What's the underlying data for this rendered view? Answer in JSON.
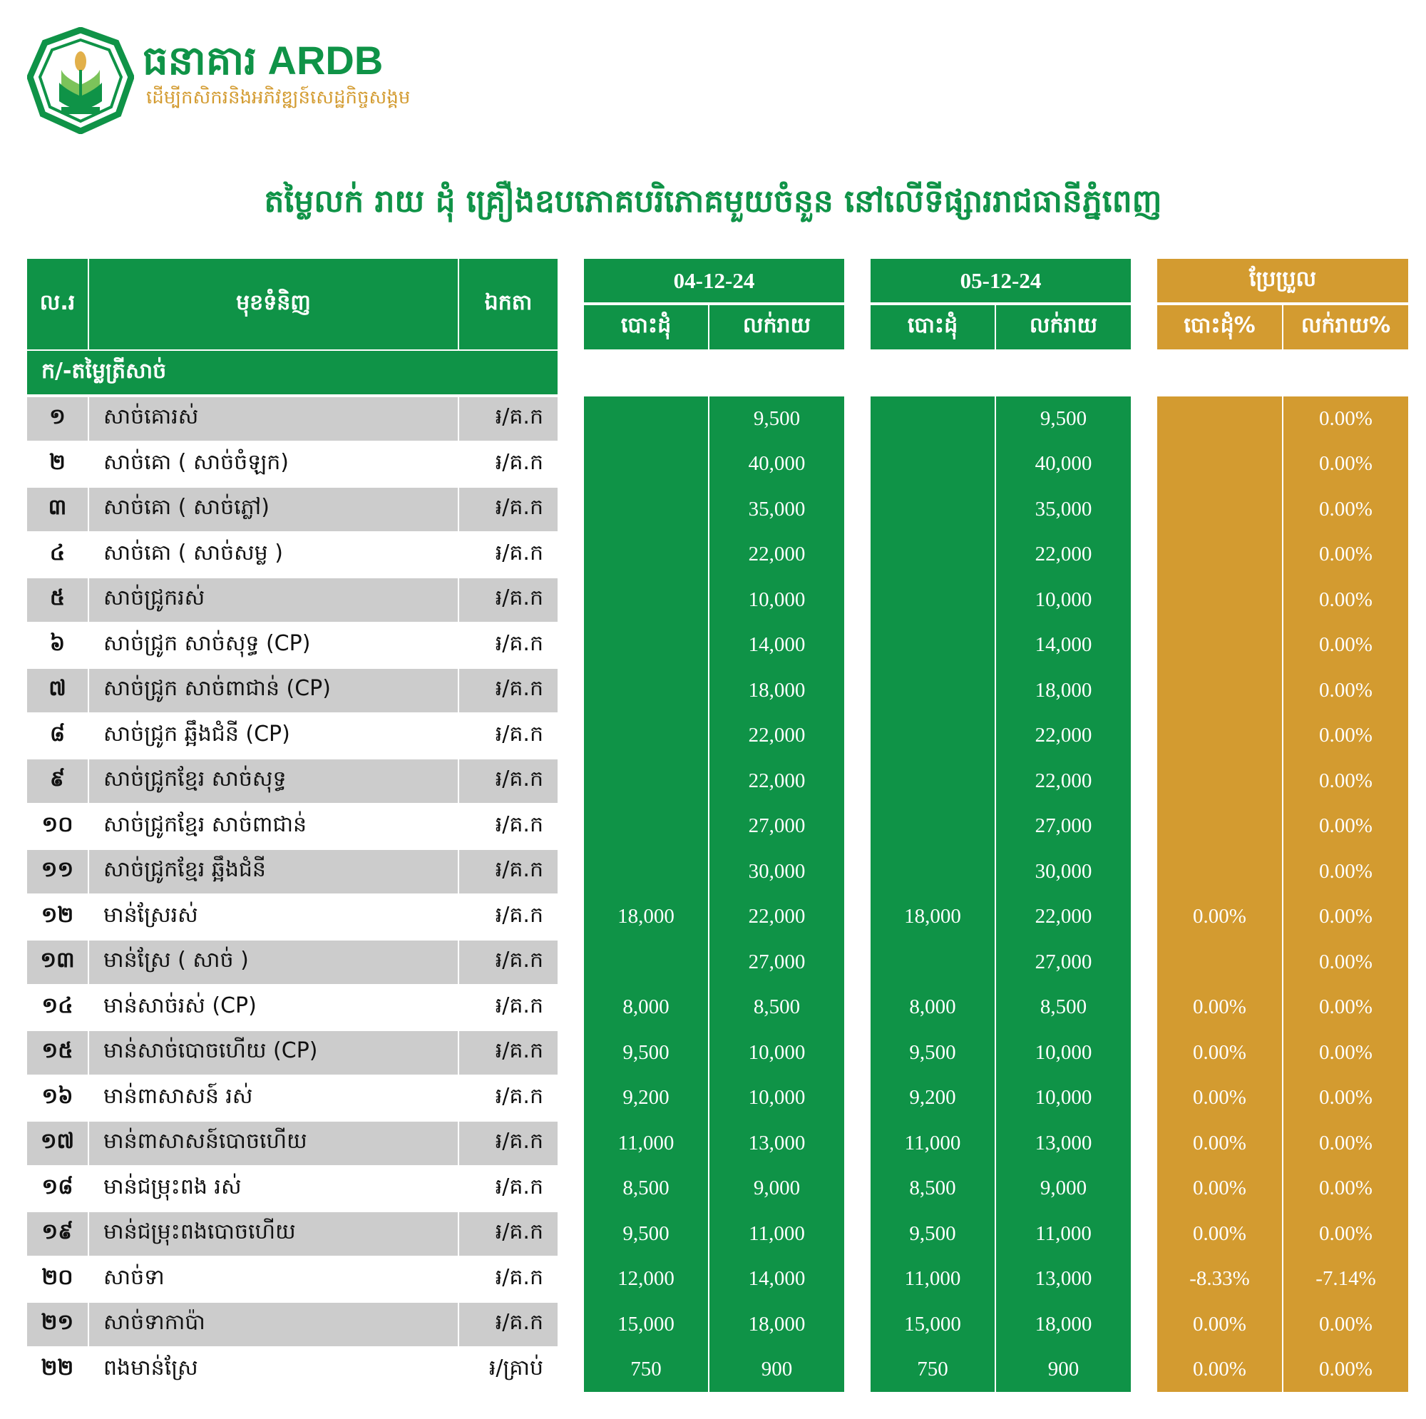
{
  "brand": {
    "name": "ធនាគារ ARDB",
    "tagline": "ដើម្បីកសិករនិងអភិវឌ្ឍន៍សេដ្ឋកិច្ចសង្គម"
  },
  "title": "តម្លៃលក់ រាយ ដុំ គ្រឿងឧបភោគបរិភោគមួយចំនួន នៅលើទីផ្សាររាជធានីភ្នំពេញ",
  "colors": {
    "green": "#0f9347",
    "gold": "#d39b30",
    "row_gray": "#cccccc"
  },
  "headers": {
    "no": "ល.រ",
    "item": "មុខទំនិញ",
    "unit": "ឯកតា",
    "date1": "04-12-24",
    "date2": "05-12-24",
    "change": "ប្រែប្រួល",
    "wholesale": "បោះដុំ",
    "retail": "លក់រាយ",
    "wholesale_pct": "បោះដុំ%",
    "retail_pct": "លក់រាយ%"
  },
  "section": "ក/-តម្លៃត្រីសាច់",
  "rows": [
    {
      "no": "១",
      "item": "សាច់គោរស់",
      "unit": "៛/គ.ក",
      "w1": "",
      "r1": "9,500",
      "w2": "",
      "r2": "9,500",
      "wp": "",
      "rp": "0.00%"
    },
    {
      "no": "២",
      "item": "សាច់គោ ( សាច់ចំឡក)",
      "unit": "៛/គ.ក",
      "w1": "",
      "r1": "40,000",
      "w2": "",
      "r2": "40,000",
      "wp": "",
      "rp": "0.00%"
    },
    {
      "no": "៣",
      "item": "សាច់គោ ( សាច់ភ្លៅ)",
      "unit": "៛/គ.ក",
      "w1": "",
      "r1": "35,000",
      "w2": "",
      "r2": "35,000",
      "wp": "",
      "rp": "0.00%"
    },
    {
      "no": "៤",
      "item": "សាច់គោ ( សាច់សម្ល )",
      "unit": "៛/គ.ក",
      "w1": "",
      "r1": "22,000",
      "w2": "",
      "r2": "22,000",
      "wp": "",
      "rp": "0.00%"
    },
    {
      "no": "៥",
      "item": "សាច់ជ្រូករស់",
      "unit": "៛/គ.ក",
      "w1": "",
      "r1": "10,000",
      "w2": "",
      "r2": "10,000",
      "wp": "",
      "rp": "0.00%"
    },
    {
      "no": "៦",
      "item": "សាច់ជ្រូក សាច់សុទ្ធ (CP)",
      "unit": "៛/គ.ក",
      "w1": "",
      "r1": "14,000",
      "w2": "",
      "r2": "14,000",
      "wp": "",
      "rp": "0.00%"
    },
    {
      "no": "៧",
      "item": "សាច់ជ្រូក សាច់ពាជាន់ (CP)",
      "unit": "៛/គ.ក",
      "w1": "",
      "r1": "18,000",
      "w2": "",
      "r2": "18,000",
      "wp": "",
      "rp": "0.00%"
    },
    {
      "no": "៨",
      "item": "សាច់ជ្រូក ឆ្អឹងជំនី (CP)",
      "unit": "៛/គ.ក",
      "w1": "",
      "r1": "22,000",
      "w2": "",
      "r2": "22,000",
      "wp": "",
      "rp": "0.00%"
    },
    {
      "no": "៩",
      "item": "សាច់ជ្រូកខ្មែរ សាច់សុទ្ធ",
      "unit": "៛/គ.ក",
      "w1": "",
      "r1": "22,000",
      "w2": "",
      "r2": "22,000",
      "wp": "",
      "rp": "0.00%"
    },
    {
      "no": "១០",
      "item": "សាច់ជ្រូកខ្មែរ សាច់ពាជាន់",
      "unit": "៛/គ.ក",
      "w1": "",
      "r1": "27,000",
      "w2": "",
      "r2": "27,000",
      "wp": "",
      "rp": "0.00%"
    },
    {
      "no": "១១",
      "item": "សាច់ជ្រូកខ្មែរ ឆ្អឹងជំនី",
      "unit": "៛/គ.ក",
      "w1": "",
      "r1": "30,000",
      "w2": "",
      "r2": "30,000",
      "wp": "",
      "rp": "0.00%"
    },
    {
      "no": "១២",
      "item": "មាន់ស្រែរស់",
      "unit": "៛/គ.ក",
      "w1": "18,000",
      "r1": "22,000",
      "w2": "18,000",
      "r2": "22,000",
      "wp": "0.00%",
      "rp": "0.00%"
    },
    {
      "no": "១៣",
      "item": "មាន់ស្រែ ( សាច់ )",
      "unit": "៛/គ.ក",
      "w1": "",
      "r1": "27,000",
      "w2": "",
      "r2": "27,000",
      "wp": "",
      "rp": "0.00%"
    },
    {
      "no": "១៤",
      "item": "មាន់សាច់រស់ (CP)",
      "unit": "៛/គ.ក",
      "w1": "8,000",
      "r1": "8,500",
      "w2": "8,000",
      "r2": "8,500",
      "wp": "0.00%",
      "rp": "0.00%"
    },
    {
      "no": "១៥",
      "item": "មាន់សាច់បោចហើយ (CP)",
      "unit": "៛/គ.ក",
      "w1": "9,500",
      "r1": "10,000",
      "w2": "9,500",
      "r2": "10,000",
      "wp": "0.00%",
      "rp": "0.00%"
    },
    {
      "no": "១៦",
      "item": "មាន់ពាសាសន៍ រស់",
      "unit": "៛/គ.ក",
      "w1": "9,200",
      "r1": "10,000",
      "w2": "9,200",
      "r2": "10,000",
      "wp": "0.00%",
      "rp": "0.00%"
    },
    {
      "no": "១៧",
      "item": "មាន់ពាសាសន៍បោចហើយ",
      "unit": "៛/គ.ក",
      "w1": "11,000",
      "r1": "13,000",
      "w2": "11,000",
      "r2": "13,000",
      "wp": "0.00%",
      "rp": "0.00%"
    },
    {
      "no": "១៨",
      "item": "មាន់ជម្រុះពង រស់",
      "unit": "៛/គ.ក",
      "w1": "8,500",
      "r1": "9,000",
      "w2": "8,500",
      "r2": "9,000",
      "wp": "0.00%",
      "rp": "0.00%"
    },
    {
      "no": "១៩",
      "item": "មាន់ជម្រុះពងបោចហើយ",
      "unit": "៛/គ.ក",
      "w1": "9,500",
      "r1": "11,000",
      "w2": "9,500",
      "r2": "11,000",
      "wp": "0.00%",
      "rp": "0.00%"
    },
    {
      "no": "២០",
      "item": "សាច់ទា",
      "unit": "៛/គ.ក",
      "w1": "12,000",
      "r1": "14,000",
      "w2": "11,000",
      "r2": "13,000",
      "wp": "-8.33%",
      "rp": "-7.14%"
    },
    {
      "no": "២១",
      "item": "សាច់ទាកាប៉ា",
      "unit": "៛/គ.ក",
      "w1": "15,000",
      "r1": "18,000",
      "w2": "15,000",
      "r2": "18,000",
      "wp": "0.00%",
      "rp": "0.00%"
    },
    {
      "no": "២២",
      "item": "ពងមាន់ស្រែ",
      "unit": "៛/គ្រាប់",
      "w1": "750",
      "r1": "900",
      "w2": "750",
      "r2": "900",
      "wp": "0.00%",
      "rp": "0.00%"
    }
  ]
}
